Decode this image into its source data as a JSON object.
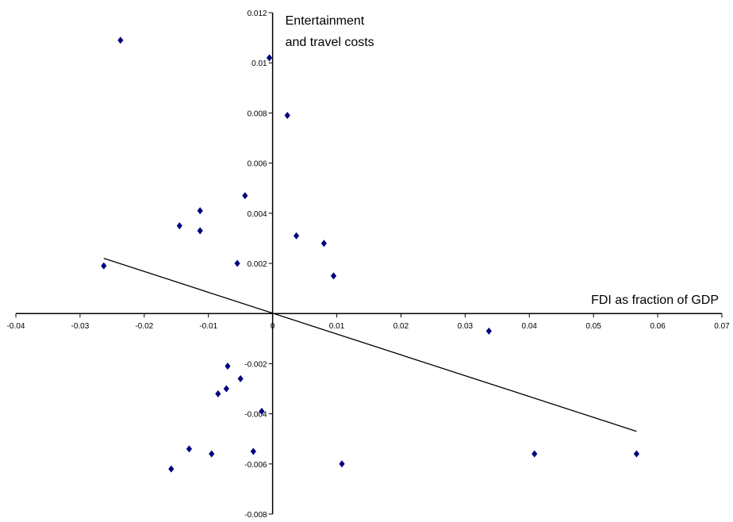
{
  "chart_data": {
    "type": "scatter",
    "title": "",
    "xlabel": "FDI as fraction of GDP",
    "ylabel_lines": [
      "Entertainment",
      "and travel costs"
    ],
    "xlim": [
      -0.04,
      0.07
    ],
    "ylim": [
      -0.008,
      0.012
    ],
    "x_ticks": [
      -0.04,
      -0.03,
      -0.02,
      -0.01,
      0,
      0.01,
      0.02,
      0.03,
      0.04,
      0.05,
      0.06,
      0.07
    ],
    "x_tick_labels": [
      "-0.04",
      "-0.03",
      "-0.02",
      "-0.01",
      "0",
      "0.01",
      "0.02",
      "0.03",
      "0.04",
      "0.05",
      "0.06",
      "0.07"
    ],
    "y_ticks": [
      -0.008,
      -0.006,
      -0.004,
      -0.002,
      0,
      0.002,
      0.004,
      0.006,
      0.008,
      0.01,
      0.012
    ],
    "y_tick_labels": [
      "-0.008",
      "-0.006",
      "-0.004",
      "-0.002",
      "0",
      "0.002",
      "0.004",
      "0.006",
      "0.008",
      "0.01",
      "0.012"
    ],
    "grid": false,
    "points": [
      {
        "x": -0.0237,
        "y": 0.0109
      },
      {
        "x": -0.0005,
        "y": 0.0102
      },
      {
        "x": 0.0023,
        "y": 0.0079
      },
      {
        "x": -0.0043,
        "y": 0.0047
      },
      {
        "x": -0.0113,
        "y": 0.0041
      },
      {
        "x": -0.0145,
        "y": 0.0035
      },
      {
        "x": -0.0113,
        "y": 0.0033
      },
      {
        "x": 0.0037,
        "y": 0.0031
      },
      {
        "x": 0.008,
        "y": 0.0028
      },
      {
        "x": -0.0055,
        "y": 0.002
      },
      {
        "x": -0.0263,
        "y": 0.0019
      },
      {
        "x": 0.0095,
        "y": 0.0015
      },
      {
        "x": 0.0337,
        "y": -0.0007
      },
      {
        "x": -0.007,
        "y": -0.0021
      },
      {
        "x": -0.005,
        "y": -0.0026
      },
      {
        "x": -0.0072,
        "y": -0.003
      },
      {
        "x": -0.0085,
        "y": -0.0032
      },
      {
        "x": -0.0017,
        "y": -0.0039
      },
      {
        "x": -0.013,
        "y": -0.0054
      },
      {
        "x": -0.003,
        "y": -0.0055
      },
      {
        "x": -0.0095,
        "y": -0.0056
      },
      {
        "x": 0.0408,
        "y": -0.0056
      },
      {
        "x": 0.0567,
        "y": -0.0056
      },
      {
        "x": 0.0108,
        "y": -0.006
      },
      {
        "x": -0.0158,
        "y": -0.0062
      }
    ],
    "trendline": {
      "x": [
        -0.0263,
        0.0567
      ],
      "y": [
        0.0022,
        -0.0047
      ]
    },
    "marker_color": "#00007f",
    "line_color": "#000000"
  }
}
